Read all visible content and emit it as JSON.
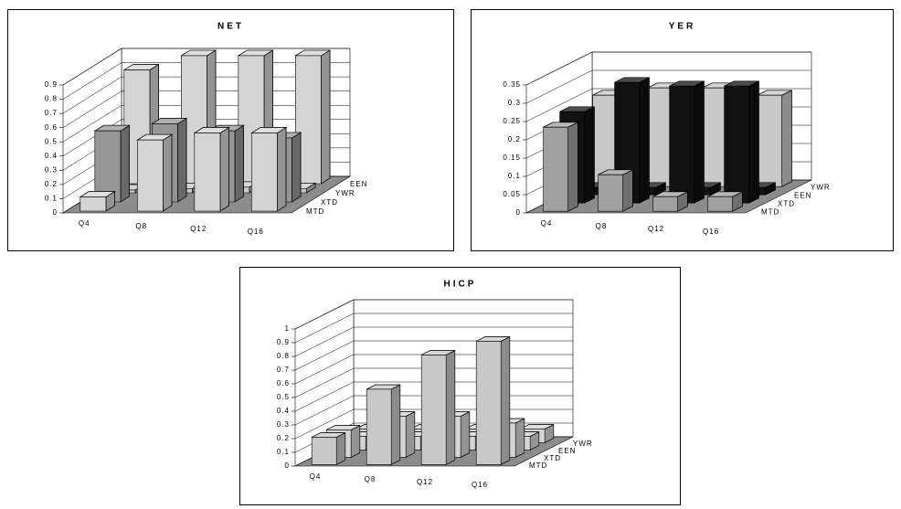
{
  "chart_data": [
    {
      "type": "bar3d",
      "title": "NET",
      "categories": [
        "Q4",
        "Q8",
        "Q12",
        "Q16"
      ],
      "series": [
        {
          "name": "MTD",
          "color": "#d4d4d4",
          "values": [
            0.1,
            0.5,
            0.55,
            0.55
          ]
        },
        {
          "name": "XTD",
          "color": "#969696",
          "values": [
            0.5,
            0.55,
            0.5,
            0.45
          ]
        },
        {
          "name": "YWR",
          "color": "#c8c8c8",
          "values": [
            0.02,
            0.03,
            0.04,
            0.03
          ]
        },
        {
          "name": "EEN",
          "color": "#d4d4d4",
          "values": [
            0.8,
            0.9,
            0.9,
            0.9
          ]
        }
      ],
      "ylim": [
        0,
        0.9
      ],
      "yticks": [
        0,
        0.1,
        0.2,
        0.3,
        0.4,
        0.5,
        0.6,
        0.7,
        0.8,
        0.9
      ]
    },
    {
      "type": "bar3d",
      "title": "YER",
      "categories": [
        "Q4",
        "Q8",
        "Q12",
        "Q16"
      ],
      "series": [
        {
          "name": "MTD",
          "color": "#a0a0a0",
          "values": [
            0.23,
            0.1,
            0.04,
            0.04
          ]
        },
        {
          "name": "XTD",
          "color": "#111111",
          "values": [
            0.25,
            0.33,
            0.32,
            0.32
          ]
        },
        {
          "name": "EEN",
          "color": "#111111",
          "values": [
            0.02,
            0.02,
            0.02,
            0.02
          ]
        },
        {
          "name": "YWR",
          "color": "#c8c8c8",
          "values": [
            0.25,
            0.27,
            0.27,
            0.25
          ]
        }
      ],
      "ylim": [
        0,
        0.35
      ],
      "yticks": [
        0,
        0.05,
        0.1,
        0.15,
        0.2,
        0.25,
        0.3,
        0.35
      ]
    },
    {
      "type": "bar3d",
      "title": "HICP",
      "categories": [
        "Q4",
        "Q8",
        "Q12",
        "Q16"
      ],
      "series": [
        {
          "name": "MTD",
          "color": "#c8c8c8",
          "values": [
            0.2,
            0.55,
            0.8,
            0.9
          ]
        },
        {
          "name": "XTD",
          "color": "#d4d4d4",
          "values": [
            0.2,
            0.3,
            0.3,
            0.25
          ]
        },
        {
          "name": "EEN",
          "color": "#d4d4d4",
          "values": [
            0.1,
            0.1,
            0.1,
            0.1
          ]
        },
        {
          "name": "YWR",
          "color": "#d4d4d4",
          "values": [
            0.1,
            0.1,
            0.1,
            0.1
          ]
        }
      ],
      "ylim": [
        0,
        1
      ],
      "yticks": [
        0,
        0.1,
        0.2,
        0.3,
        0.4,
        0.5,
        0.6,
        0.7,
        0.8,
        0.9,
        1
      ]
    }
  ]
}
